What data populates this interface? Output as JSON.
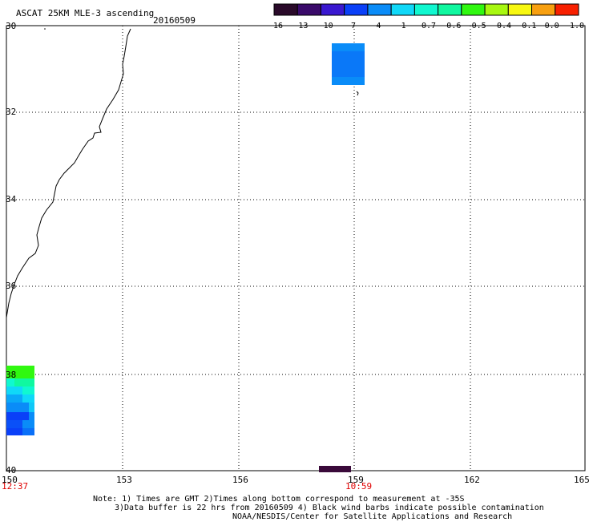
{
  "header": {
    "title": "ASCAT 25KM MLE-3 ascending",
    "date": "20160509"
  },
  "colorbar": {
    "labels": [
      "-16",
      "-13",
      "-10",
      "-7",
      "-4",
      "-1",
      "-0.7",
      "-0.6",
      "-0.5",
      "-0.4",
      "-0.1",
      "0.0",
      "1.0"
    ],
    "colors": [
      "#2a0a2a",
      "#3a0a6a",
      "#3a18d0",
      "#0a40f8",
      "#0a8cf8",
      "#10d8f8",
      "#10f8d0",
      "#10f8a0",
      "#30f810",
      "#a8f810",
      "#f8f810",
      "#f8a010",
      "#f82000"
    ]
  },
  "axes": {
    "lat_labels": [
      "30",
      "32",
      "34",
      "36",
      "38",
      "40"
    ],
    "lon_labels": [
      "150",
      "153",
      "156",
      "159",
      "162",
      "165"
    ],
    "time_labels": [
      "12:37",
      "10:59"
    ]
  },
  "notes": {
    "line1": "Note: 1) Times are GMT 2)Times along bottom correspond to measurement at -35S",
    "line2": "3)Data buffer is 22 hrs from 20160509 4) Black wind barbs indicate possible contamination",
    "line3": "NOAA/NESDIS/Center for Satellite Applications and Research"
  }
}
